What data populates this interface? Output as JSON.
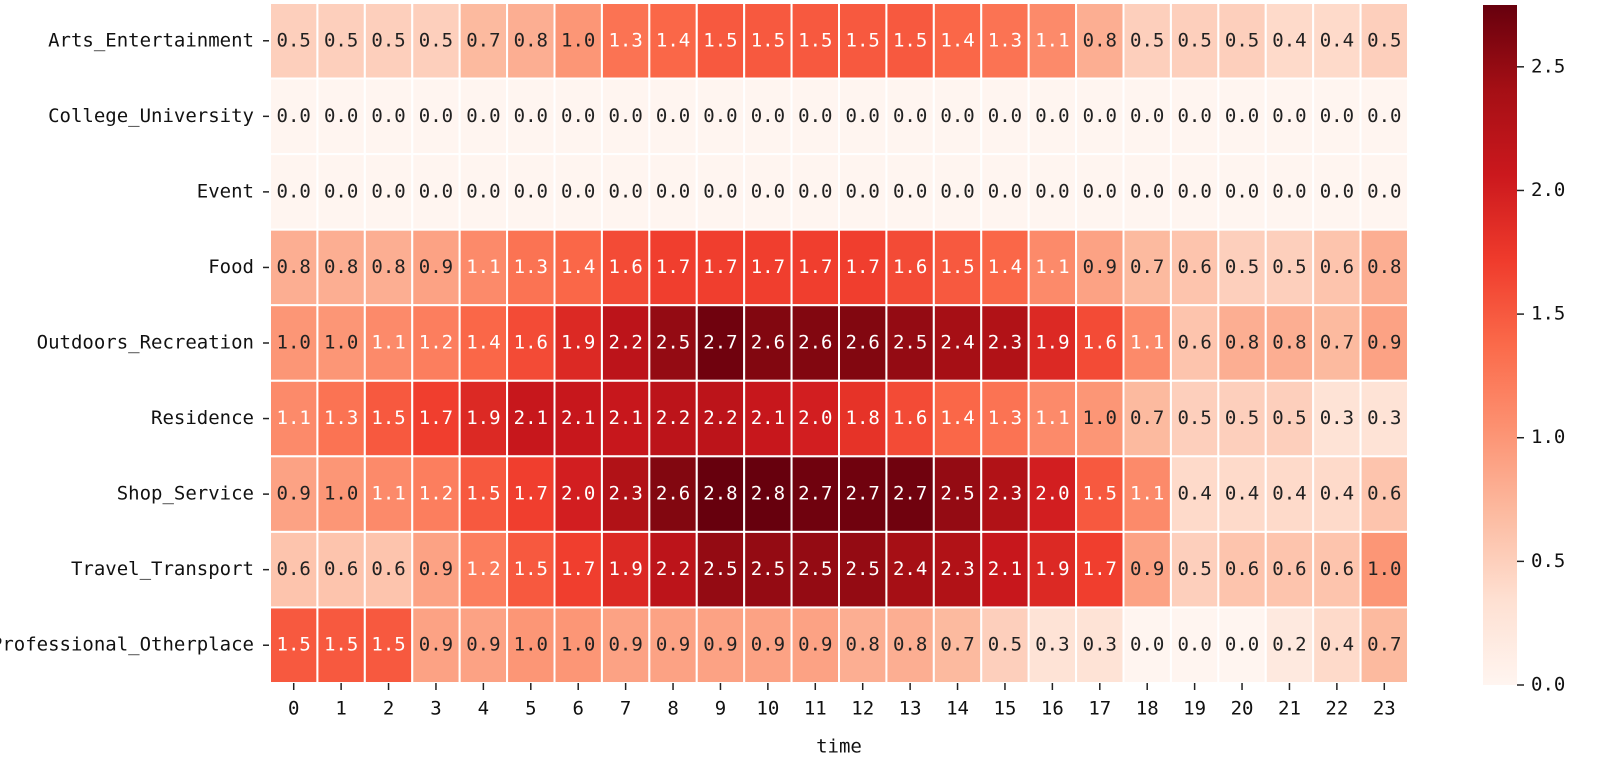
{
  "chart_data": {
    "type": "heatmap",
    "x": [
      0,
      1,
      2,
      3,
      4,
      5,
      6,
      7,
      8,
      9,
      10,
      11,
      12,
      13,
      14,
      15,
      16,
      17,
      18,
      19,
      20,
      21,
      22,
      23
    ],
    "y": [
      "Arts_Entertainment",
      "College_University",
      "Event",
      "Food",
      "Outdoors_Recreation",
      "Residence",
      "Shop_Service",
      "Travel_Transport",
      "Professional_Otherplace"
    ],
    "xlabel": "time",
    "values": [
      [
        0.5,
        0.5,
        0.5,
        0.5,
        0.7,
        0.8,
        1.0,
        1.3,
        1.4,
        1.5,
        1.5,
        1.5,
        1.5,
        1.5,
        1.4,
        1.3,
        1.1,
        0.8,
        0.5,
        0.5,
        0.5,
        0.4,
        0.4,
        0.5
      ],
      [
        0,
        0,
        0,
        0,
        0,
        0,
        0,
        0,
        0,
        0,
        0,
        0,
        0,
        0,
        0,
        0,
        0,
        0,
        0,
        0,
        0,
        0,
        0,
        0
      ],
      [
        0,
        0,
        0,
        0,
        0,
        0,
        0,
        0,
        0,
        0,
        0,
        0,
        0,
        0,
        0,
        0,
        0,
        0,
        0,
        0,
        0,
        0,
        0,
        0
      ],
      [
        0.8,
        0.8,
        0.8,
        0.9,
        1.1,
        1.3,
        1.4,
        1.6,
        1.7,
        1.7,
        1.7,
        1.7,
        1.7,
        1.6,
        1.5,
        1.4,
        1.1,
        0.9,
        0.7,
        0.6,
        0.5,
        0.5,
        0.6,
        0.8
      ],
      [
        1.0,
        1.0,
        1.1,
        1.2,
        1.4,
        1.6,
        1.9,
        2.2,
        2.5,
        2.7,
        2.6,
        2.6,
        2.6,
        2.5,
        2.4,
        2.3,
        1.9,
        1.6,
        1.1,
        0.6,
        0.8,
        0.8,
        0.7,
        0.9
      ],
      [
        1.1,
        1.3,
        1.5,
        1.7,
        1.9,
        2.1,
        2.1,
        2.1,
        2.2,
        2.2,
        2.1,
        2.0,
        1.8,
        1.6,
        1.4,
        1.3,
        1.1,
        1.0,
        0.7,
        0.5,
        0.5,
        0.5,
        0.3,
        0.3
      ],
      [
        0.9,
        1.0,
        1.1,
        1.2,
        1.5,
        1.7,
        2.0,
        2.3,
        2.6,
        2.8,
        2.8,
        2.7,
        2.7,
        2.7,
        2.5,
        2.3,
        2.0,
        1.5,
        1.1,
        0.4,
        0.4,
        0.4,
        0.4,
        0.6
      ],
      [
        0.6,
        0.6,
        0.6,
        0.9,
        1.2,
        1.5,
        1.7,
        1.9,
        2.2,
        2.5,
        2.5,
        2.5,
        2.5,
        2.4,
        2.3,
        2.1,
        1.9,
        1.7,
        0.9,
        0.5,
        0.6,
        0.6,
        0.6,
        1.0
      ],
      [
        1.5,
        1.5,
        1.5,
        0.9,
        0.9,
        1.0,
        1.0,
        0.9,
        0.9,
        0.9,
        0.9,
        0.9,
        0.8,
        0.8,
        0.7,
        0.5,
        0.3,
        0.3,
        0,
        0,
        0,
        0.2,
        0.4,
        0.7
      ]
    ],
    "value_labels": [
      [
        "0.5",
        "0.5",
        "0.5",
        "0.5",
        "0.7",
        "0.8",
        "1.0",
        "1.3",
        "1.4",
        "1.5",
        "1.5",
        "1.5",
        "1.5",
        "1.5",
        "1.4",
        "1.3",
        "1.1",
        "0.8",
        "0.5",
        "0.5",
        "0.5",
        "0.4",
        "0.4",
        "0.5"
      ],
      [
        "0.0",
        "0.0",
        "0.0",
        "0.0",
        "0.0",
        "0.0",
        "0.0",
        "0.0",
        "0.0",
        "0.0",
        "0.0",
        "0.0",
        "0.0",
        "0.0",
        "0.0",
        "0.0",
        "0.0",
        "0.0",
        "0.0",
        "0.0",
        "0.0",
        "0.0",
        "0.0",
        "0.0"
      ],
      [
        "0.0",
        "0.0",
        "0.0",
        "0.0",
        "0.0",
        "0.0",
        "0.0",
        "0.0",
        "0.0",
        "0.0",
        "0.0",
        "0.0",
        "0.0",
        "0.0",
        "0.0",
        "0.0",
        "0.0",
        "0.0",
        "0.0",
        "0.0",
        "0.0",
        "0.0",
        "0.0",
        "0.0"
      ],
      [
        "0.8",
        "0.8",
        "0.8",
        "0.9",
        "1.1",
        "1.3",
        "1.4",
        "1.6",
        "1.7",
        "1.7",
        "1.7",
        "1.7",
        "1.7",
        "1.6",
        "1.5",
        "1.4",
        "1.1",
        "0.9",
        "0.7",
        "0.6",
        "0.5",
        "0.5",
        "0.6",
        "0.8"
      ],
      [
        "1.0",
        "1.0",
        "1.1",
        "1.2",
        "1.4",
        "1.6",
        "1.9",
        "2.2",
        "2.5",
        "2.7",
        "2.6",
        "2.6",
        "2.6",
        "2.5",
        "2.4",
        "2.3",
        "1.9",
        "1.6",
        "1.1",
        "0.6",
        "0.8",
        "0.8",
        "0.7",
        "0.9"
      ],
      [
        "1.1",
        "1.3",
        "1.5",
        "1.7",
        "1.9",
        "2.1",
        "2.1",
        "2.1",
        "2.2",
        "2.2",
        "2.1",
        "2.0",
        "1.8",
        "1.6",
        "1.4",
        "1.3",
        "1.1",
        "1.0",
        "0.7",
        "0.5",
        "0.5",
        "0.5",
        "0.3",
        "0.3"
      ],
      [
        "0.9",
        "1.0",
        "1.1",
        "1.2",
        "1.5",
        "1.7",
        "2.0",
        "2.3",
        "2.6",
        "2.8",
        "2.8",
        "2.7",
        "2.7",
        "2.7",
        "2.5",
        "2.3",
        "2.0",
        "1.5",
        "1.1",
        "0.4",
        "0.4",
        "0.4",
        "0.4",
        "0.6"
      ],
      [
        "0.6",
        "0.6",
        "0.6",
        "0.9",
        "1.2",
        "1.5",
        "1.7",
        "1.9",
        "2.2",
        "2.5",
        "2.5",
        "2.5",
        "2.5",
        "2.4",
        "2.3",
        "2.1",
        "1.9",
        "1.7",
        "0.9",
        "0.5",
        "0.6",
        "0.6",
        "0.6",
        "1.0"
      ],
      [
        "1.5",
        "1.5",
        "1.5",
        "0.9",
        "0.9",
        "1.0",
        "1.0",
        "0.9",
        "0.9",
        "0.9",
        "0.9",
        "0.9",
        "0.8",
        "0.8",
        "0.7",
        "0.5",
        "0.3",
        "0.3",
        "0.0",
        "0.0",
        "0.0",
        "0.2",
        "0.4",
        "0.7"
      ]
    ],
    "colormap": [
      "#fff5f0",
      "#fee0d2",
      "#fcbba1",
      "#fc9272",
      "#fb6a4a",
      "#ef3b2c",
      "#cb181d",
      "#a50f15",
      "#67000d"
    ],
    "zlim": [
      0,
      2.75
    ],
    "zticks": [
      {
        "value": 0,
        "label": "0.0"
      },
      {
        "value": 0.5,
        "label": "0.5"
      },
      {
        "value": 1,
        "label": "1.0"
      },
      {
        "value": 1.5,
        "label": "1.5"
      },
      {
        "value": 2,
        "label": "2.0"
      },
      {
        "value": 2.5,
        "label": "2.5"
      }
    ]
  }
}
